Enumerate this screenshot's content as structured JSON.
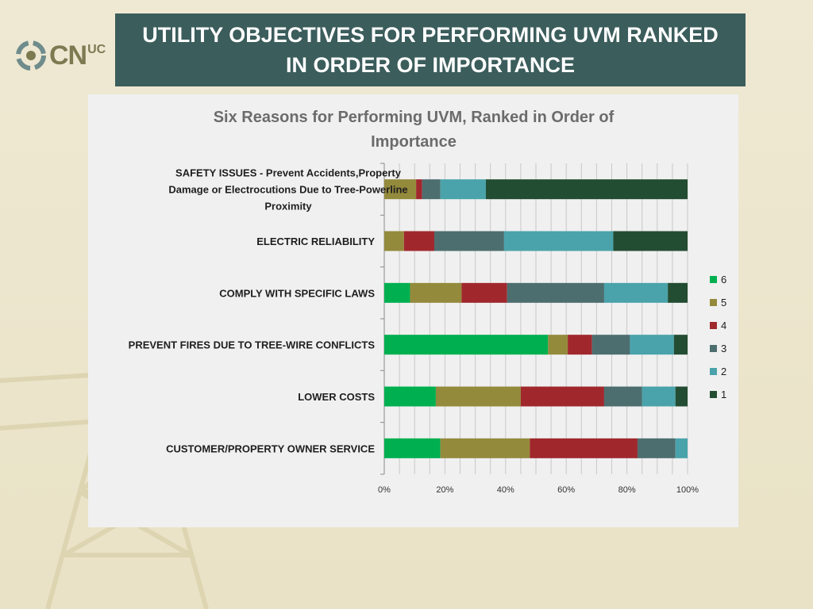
{
  "slide": {
    "title": "UTILITY OBJECTIVES FOR PERFORMING UVM RANKED IN ORDER OF IMPORTANCE",
    "logo_text": "CN",
    "logo_superscript": "UC"
  },
  "chart_data": {
    "type": "bar",
    "orientation": "horizontal",
    "stacked": "percent",
    "title": "Six Reasons for Performing UVM, Ranked in Order of Importance",
    "categories": [
      "SAFETY ISSUES - Prevent Accidents,Property Damage or  Electrocutions Due to Tree-Powerline Proximity",
      "ELECTRIC RELIABILITY",
      "COMPLY WITH SPECIFIC LAWS",
      "PREVENT FIRES DUE TO TREE-WIRE CONFLICTS",
      "LOWER COSTS",
      "CUSTOMER/PROPERTY OWNER SERVICE"
    ],
    "category_lines": [
      [
        "SAFETY ISSUES - Prevent Accidents,Property",
        "Damage or  Electrocutions Due to Tree-Powerline",
        "Proximity"
      ],
      [
        "ELECTRIC RELIABILITY"
      ],
      [
        "COMPLY WITH SPECIFIC LAWS"
      ],
      [
        "PREVENT FIRES DUE TO TREE-WIRE CONFLICTS"
      ],
      [
        "LOWER COSTS"
      ],
      [
        "CUSTOMER/PROPERTY OWNER SERVICE"
      ]
    ],
    "series": [
      {
        "name": "6",
        "color": "#00b050",
        "values": [
          0,
          0,
          8.5,
          54,
          17,
          18.5
        ]
      },
      {
        "name": "5",
        "color": "#948a3c",
        "values": [
          10.5,
          6.5,
          17,
          6.5,
          28,
          29.5
        ]
      },
      {
        "name": "4",
        "color": "#a0282d",
        "values": [
          2,
          10,
          15,
          8,
          27.5,
          35.5
        ]
      },
      {
        "name": "3",
        "color": "#4d6e6f",
        "values": [
          6,
          23,
          32,
          12.5,
          12.5,
          12.5
        ]
      },
      {
        "name": "2",
        "color": "#4aa3aa",
        "values": [
          15,
          36,
          21,
          14.5,
          11,
          4
        ]
      },
      {
        "name": "1",
        "color": "#234d32",
        "values": [
          66.5,
          24.5,
          6.5,
          4.5,
          4,
          0
        ]
      }
    ],
    "xlim": [
      0,
      100
    ],
    "x_ticks": [
      "0%",
      "20%",
      "40%",
      "60%",
      "80%",
      "100%"
    ],
    "legend_order": [
      "6",
      "5",
      "4",
      "3",
      "2",
      "1"
    ],
    "legend_position": "right",
    "grid": true
  }
}
